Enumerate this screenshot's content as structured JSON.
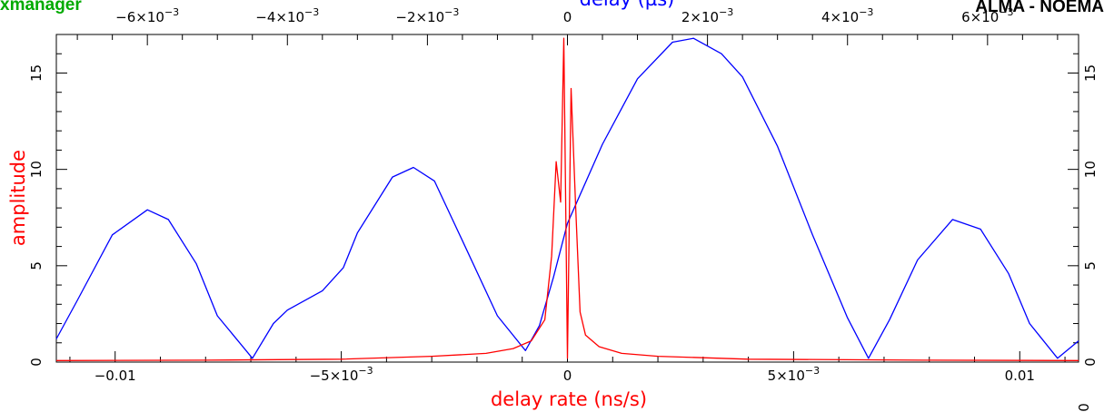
{
  "app_label": "xmanager",
  "top_right_label": "ALMA - NOEMA",
  "corner_label": "0",
  "chart_data": {
    "type": "line",
    "xlabel": "delay rate (ns/s)",
    "ylabel": "amplitude",
    "top_xlabel": "delay (µs)",
    "xlim": [
      -0.0113,
      0.0113
    ],
    "ylim": [
      0,
      17
    ],
    "top_xlim": [
      -0.0073,
      0.0073
    ],
    "bottom_ticks": [
      {
        "value": -0.01,
        "mant": "−0.01",
        "exp": ""
      },
      {
        "value": -0.005,
        "mant": "−5×10",
        "exp": "−3"
      },
      {
        "value": 0,
        "mant": "0",
        "exp": ""
      },
      {
        "value": 0.005,
        "mant": "5×10",
        "exp": "−3"
      },
      {
        "value": 0.01,
        "mant": "0.01",
        "exp": ""
      }
    ],
    "top_ticks": [
      {
        "value": -0.006,
        "mant": "−6×10",
        "exp": "−3"
      },
      {
        "value": -0.004,
        "mant": "−4×10",
        "exp": "−3"
      },
      {
        "value": -0.002,
        "mant": "−2×10",
        "exp": "−3"
      },
      {
        "value": 0,
        "mant": "0",
        "exp": ""
      },
      {
        "value": 0.002,
        "mant": "2×10",
        "exp": "−3"
      },
      {
        "value": 0.004,
        "mant": "4×10",
        "exp": "−3"
      },
      {
        "value": 0.006,
        "mant": "6×10",
        "exp": "−3"
      }
    ],
    "y_ticks": [
      "0",
      "5",
      "10",
      "15"
    ],
    "y_tick_values": [
      0,
      5,
      10,
      15
    ],
    "series": [
      {
        "axis": "top",
        "color": "#0000ff",
        "x": [
          -0.0073,
          -0.007,
          -0.0065,
          -0.006,
          -0.0057,
          -0.0053,
          -0.005,
          -0.0045,
          -0.0042,
          -0.004,
          -0.0037,
          -0.0035,
          -0.0032,
          -0.003,
          -0.0025,
          -0.0022,
          -0.0019,
          -0.0015,
          -0.001,
          -0.0006,
          -0.0004,
          -0.0002,
          0.0,
          0.0005,
          0.001,
          0.0015,
          0.0018,
          0.0022,
          0.0025,
          0.003,
          0.0035,
          0.004,
          0.0043,
          0.0046,
          0.005,
          0.0055,
          0.0059,
          0.0063,
          0.0066,
          0.007,
          0.0073
        ],
        "y": [
          1.2,
          3.2,
          6.6,
          7.9,
          7.4,
          5.1,
          2.4,
          0.2,
          2.0,
          2.7,
          3.3,
          3.7,
          4.9,
          6.7,
          9.6,
          10.1,
          9.4,
          6.3,
          2.4,
          0.6,
          1.9,
          4.4,
          7.2,
          11.3,
          14.7,
          16.6,
          16.8,
          16.0,
          14.8,
          11.2,
          6.6,
          2.3,
          0.2,
          2.2,
          5.3,
          7.4,
          6.9,
          4.6,
          2.0,
          0.2,
          1.1
        ]
      },
      {
        "axis": "bottom",
        "color": "#ff0000",
        "x": [
          -0.0113,
          -0.008,
          -0.005,
          -0.003,
          -0.0018,
          -0.0012,
          -0.0008,
          -0.0005,
          -0.00035,
          -0.00025,
          -0.00015,
          -8e-05,
          0.0,
          8e-05,
          0.00018,
          0.00028,
          0.0004,
          0.0007,
          0.0012,
          0.002,
          0.004,
          0.008,
          0.0113
        ],
        "y": [
          0.08,
          0.1,
          0.15,
          0.3,
          0.45,
          0.7,
          1.1,
          2.2,
          5.5,
          10.4,
          8.3,
          16.8,
          0.2,
          14.2,
          8.1,
          2.6,
          1.4,
          0.8,
          0.45,
          0.3,
          0.15,
          0.1,
          0.08
        ]
      }
    ]
  }
}
